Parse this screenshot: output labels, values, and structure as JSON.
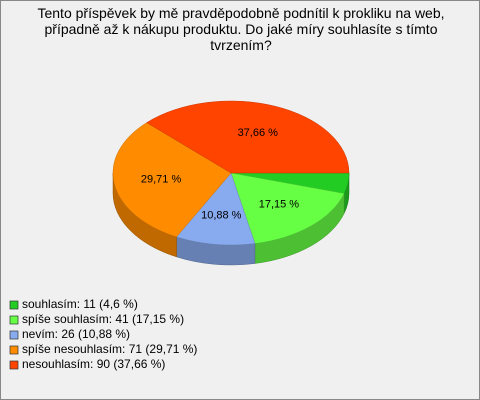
{
  "chart_data": {
    "type": "pie",
    "title": "Tento příspěvek by mě pravděpodobně podnítil k prokliku na web, případně až k nákupu produktu. Do jaké míry souhlasíte s tímto tvrzením?",
    "categories": [
      "souhlasím: 11 (4,6 %)",
      "spíše souhlasím: 41 (17,15 %)",
      "nevím: 26 (10,88 %)",
      "spíše nesouhlasím: 71 (29,71 %)",
      "nesouhlasím: 90 (37,66 %)"
    ],
    "values": [
      4.6,
      17.15,
      10.88,
      29.71,
      37.66
    ],
    "value_labels": [
      null,
      "17,15 %",
      "10,88 %",
      "29,71 %",
      "37,66 %"
    ],
    "colors": [
      "#22cc22",
      "#66ff44",
      "#88aaee",
      "#ff8c00",
      "#ff4400"
    ],
    "legend": "bottom-left"
  }
}
